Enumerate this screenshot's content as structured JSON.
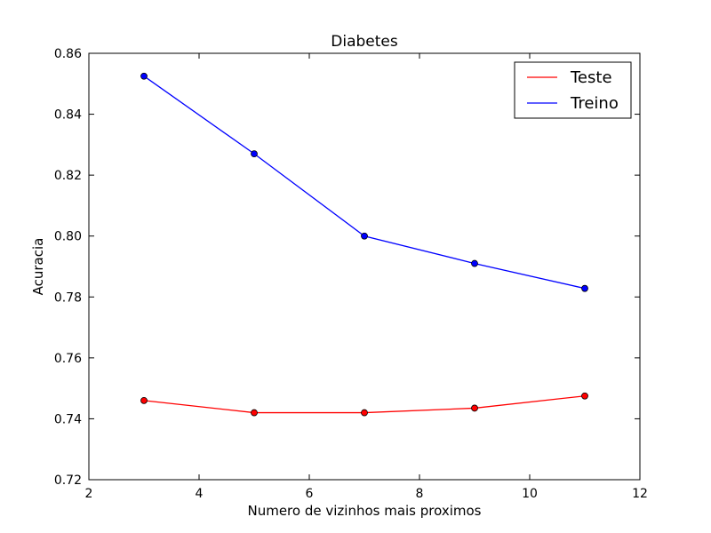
{
  "chart_data": {
    "type": "line",
    "title": "Diabetes",
    "xlabel": "Numero de vizinhos mais proximos",
    "ylabel": "Acuracia",
    "xlim": [
      2,
      12
    ],
    "ylim": [
      0.72,
      0.86
    ],
    "x_ticks": [
      "2",
      "4",
      "6",
      "8",
      "10",
      "12"
    ],
    "y_ticks": [
      "0.72",
      "0.74",
      "0.76",
      "0.78",
      "0.80",
      "0.82",
      "0.84",
      "0.86"
    ],
    "grid": false,
    "legend_position": "top-right",
    "x": [
      3,
      5,
      7,
      9,
      11
    ],
    "series": [
      {
        "name": "Teste",
        "color": "#ff0000",
        "values": [
          0.746,
          0.742,
          0.742,
          0.7435,
          0.7475
        ]
      },
      {
        "name": "Treino",
        "color": "#0000ff",
        "values": [
          0.8525,
          0.827,
          0.8,
          0.791,
          0.7828
        ]
      }
    ]
  }
}
